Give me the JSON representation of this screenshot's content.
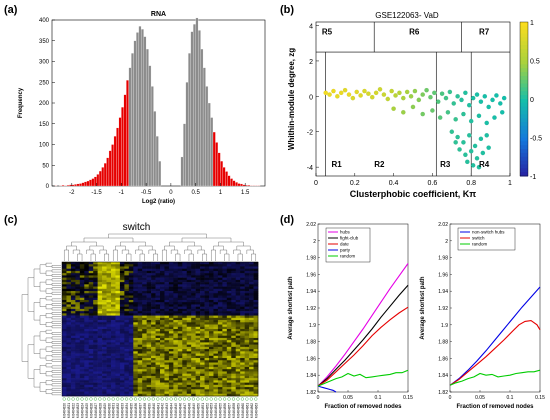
{
  "panels": {
    "a": {
      "label": "(a)"
    },
    "b": {
      "label": "(b)"
    },
    "c": {
      "label": "(c)"
    },
    "d": {
      "label": "(d)"
    }
  },
  "chart_data": [
    {
      "id": "a",
      "type": "bar",
      "title": "RNA",
      "xlabel": "Log2 (ratio)",
      "ylabel": "Frequency",
      "xlim": [
        -2.4,
        1.9
      ],
      "ylim": [
        0,
        400
      ],
      "xticks": [
        "-2",
        "-1.5",
        "-1",
        "-0.5",
        "0",
        "0.5",
        "1",
        "1.5"
      ],
      "xtick_values": [
        -2,
        -1.5,
        -1,
        -0.5,
        0,
        0.5,
        1,
        1.5
      ],
      "yticks": [
        "0",
        "50",
        "100",
        "150",
        "200",
        "250",
        "300",
        "350",
        "400"
      ],
      "ytick_values": [
        0,
        50,
        100,
        150,
        200,
        250,
        300,
        350,
        400
      ],
      "bin_width": 0.05,
      "bin_centers": [
        -2.325,
        -2.275,
        -2.225,
        -2.175,
        -2.125,
        -2.075,
        -2.025,
        -1.975,
        -1.925,
        -1.875,
        -1.825,
        -1.775,
        -1.725,
        -1.675,
        -1.625,
        -1.575,
        -1.525,
        -1.475,
        -1.425,
        -1.375,
        -1.325,
        -1.275,
        -1.225,
        -1.175,
        -1.125,
        -1.075,
        -1.025,
        -0.975,
        -0.925,
        -0.875,
        -0.825,
        -0.775,
        -0.725,
        -0.675,
        -0.625,
        -0.575,
        -0.525,
        -0.475,
        -0.425,
        -0.375,
        -0.325,
        -0.275,
        -0.225,
        0.225,
        0.275,
        0.325,
        0.375,
        0.425,
        0.475,
        0.525,
        0.575,
        0.625,
        0.675,
        0.725,
        0.775,
        0.825,
        0.875,
        0.925,
        0.975,
        1.025,
        1.075,
        1.125,
        1.175,
        1.225,
        1.275,
        1.325,
        1.375,
        1.425,
        1.475,
        1.525,
        1.575,
        1.625,
        1.675,
        1.725,
        1.775
      ],
      "values": [
        1,
        0,
        1,
        2,
        1,
        2,
        3,
        3,
        4,
        5,
        6,
        8,
        10,
        12,
        15,
        18,
        22,
        28,
        36,
        45,
        55,
        68,
        85,
        100,
        120,
        140,
        165,
        190,
        220,
        255,
        285,
        320,
        350,
        370,
        385,
        378,
        360,
        330,
        290,
        240,
        180,
        120,
        60,
        70,
        150,
        250,
        320,
        372,
        390,
        405,
        375,
        330,
        285,
        240,
        200,
        165,
        130,
        105,
        80,
        60,
        45,
        35,
        25,
        18,
        13,
        9,
        6,
        5,
        3,
        2,
        2,
        1,
        1,
        1,
        1
      ],
      "highlight_ranges": [
        [
          -2.4,
          -0.85
        ],
        [
          0.85,
          1.9
        ]
      ],
      "colors": {
        "bars": "#8c8c8c",
        "highlight": "#e60000"
      }
    },
    {
      "id": "b",
      "type": "scatter",
      "title": "GSE122063- VaD",
      "xlabel": "Clusterphobic coefficient, Kπ",
      "ylabel": "Whithin-module degree, zg",
      "xlim": [
        0,
        1
      ],
      "ylim": [
        -4.5,
        4.2
      ],
      "xticks": [
        "0",
        "0.2",
        "0.4",
        "0.6",
        "0.8",
        "1"
      ],
      "xtick_values": [
        0,
        0.2,
        0.4,
        0.6,
        0.8,
        1
      ],
      "yticks": [
        "4",
        "2",
        "0",
        "-2",
        "-4"
      ],
      "ytick_values": [
        4,
        2,
        0,
        -2,
        -4
      ],
      "region_lines": {
        "h": 2.5,
        "v_top": [
          0.3,
          0.75
        ],
        "v_bottom": [
          0.05,
          0.62,
          0.8
        ]
      },
      "regions": [
        "R1",
        "R2",
        "R3",
        "R4",
        "R5",
        "R6",
        "R7"
      ],
      "colorbar": {
        "ticks": [
          "1",
          "0.5",
          "0",
          "-0.5",
          "-1"
        ],
        "tick_values": [
          1,
          0.5,
          0,
          -0.5,
          -1
        ],
        "range": [
          -1,
          1
        ]
      },
      "points": [
        [
          0.05,
          0.2,
          0.95
        ],
        [
          0.07,
          0.1,
          0.9
        ],
        [
          0.09,
          0.3,
          0.92
        ],
        [
          0.11,
          0.0,
          0.88
        ],
        [
          0.13,
          0.2,
          0.9
        ],
        [
          0.15,
          0.35,
          0.85
        ],
        [
          0.17,
          0.1,
          0.9
        ],
        [
          0.19,
          -0.1,
          0.8
        ],
        [
          0.21,
          0.25,
          0.85
        ],
        [
          0.23,
          0.05,
          0.82
        ],
        [
          0.25,
          0.3,
          0.8
        ],
        [
          0.27,
          0.15,
          0.78
        ],
        [
          0.29,
          -0.05,
          0.75
        ],
        [
          0.31,
          0.2,
          0.76
        ],
        [
          0.33,
          0.4,
          0.72
        ],
        [
          0.35,
          0.1,
          0.7
        ],
        [
          0.37,
          -0.15,
          0.65
        ],
        [
          0.39,
          0.3,
          0.66
        ],
        [
          0.41,
          0.05,
          0.6
        ],
        [
          0.43,
          0.2,
          0.58
        ],
        [
          0.45,
          -0.1,
          0.52
        ],
        [
          0.47,
          0.25,
          0.5
        ],
        [
          0.49,
          0.0,
          0.45
        ],
        [
          0.51,
          0.3,
          0.42
        ],
        [
          0.53,
          -0.2,
          0.38
        ],
        [
          0.55,
          0.1,
          0.35
        ],
        [
          0.57,
          0.35,
          0.3
        ],
        [
          0.59,
          -0.05,
          0.28
        ],
        [
          0.61,
          0.2,
          0.25
        ],
        [
          0.63,
          -0.3,
          0.2
        ],
        [
          0.65,
          0.15,
          0.18
        ],
        [
          0.67,
          -0.1,
          0.15
        ],
        [
          0.69,
          0.25,
          0.12
        ],
        [
          0.71,
          -0.4,
          0.1
        ],
        [
          0.73,
          0.0,
          0.08
        ],
        [
          0.75,
          -0.2,
          0.06
        ],
        [
          0.77,
          0.2,
          0.05
        ],
        [
          0.79,
          -0.5,
          0.04
        ],
        [
          0.81,
          -0.1,
          0.03
        ],
        [
          0.83,
          0.1,
          0.02
        ],
        [
          0.85,
          -0.3,
          0.02
        ],
        [
          0.87,
          0.0,
          0.01
        ],
        [
          0.89,
          -0.6,
          0.01
        ],
        [
          0.91,
          -0.2,
          0.01
        ],
        [
          0.93,
          0.05,
          0.0
        ],
        [
          0.95,
          -0.4,
          0.0
        ],
        [
          0.97,
          -0.1,
          0.0
        ],
        [
          0.4,
          -0.7,
          0.5
        ],
        [
          0.45,
          -0.9,
          0.45
        ],
        [
          0.5,
          -0.6,
          0.4
        ],
        [
          0.55,
          -1.0,
          0.32
        ],
        [
          0.6,
          -0.8,
          0.28
        ],
        [
          0.64,
          -1.2,
          0.22
        ],
        [
          0.68,
          -0.9,
          0.16
        ],
        [
          0.72,
          -1.3,
          0.12
        ],
        [
          0.76,
          -1.0,
          0.08
        ],
        [
          0.8,
          -1.4,
          0.05
        ],
        [
          0.84,
          -1.1,
          0.03
        ],
        [
          0.88,
          -1.5,
          0.02
        ],
        [
          0.92,
          -1.2,
          0.01
        ],
        [
          0.96,
          -0.9,
          0.0
        ],
        [
          0.7,
          -2.0,
          0.1
        ],
        [
          0.73,
          -2.3,
          0.08
        ],
        [
          0.76,
          -2.6,
          0.07
        ],
        [
          0.79,
          -2.2,
          0.06
        ],
        [
          0.82,
          -2.8,
          0.05
        ],
        [
          0.85,
          -2.4,
          0.04
        ],
        [
          0.74,
          -3.0,
          0.08
        ],
        [
          0.77,
          -3.3,
          0.07
        ],
        [
          0.8,
          -3.1,
          0.06
        ],
        [
          0.83,
          -3.5,
          0.05
        ],
        [
          0.86,
          -3.2,
          0.04
        ],
        [
          0.89,
          -2.9,
          0.03
        ],
        [
          0.78,
          -3.7,
          0.06
        ],
        [
          0.81,
          -3.9,
          0.05
        ],
        [
          0.84,
          -4.0,
          0.04
        ],
        [
          0.72,
          -2.6,
          0.09
        ],
        [
          0.88,
          -2.2,
          0.03
        ]
      ]
    },
    {
      "id": "c",
      "type": "heatmap",
      "title": "switch",
      "rows": 60,
      "cols": 44,
      "col_groups": {
        "yellow_cols": [
          [
            8,
            12
          ]
        ],
        "blue_cols": [
          [
            16,
            43
          ]
        ],
        "split_row": 24
      },
      "col_labels": [
        "GSM3464820",
        "GSM3464821",
        "GSM3464822",
        "GSM3464823",
        "GSM3464824",
        "GSM3464825",
        "GSM3464826",
        "GSM3464827",
        "GSM3464828",
        "GSM3464829",
        "GSM3464830",
        "GSM3464831",
        "GSM3464832",
        "GSM3464833",
        "GSM3464834",
        "GSM3464835",
        "GSM3464836",
        "GSM3464837",
        "GSM3464838",
        "GSM3464839",
        "GSM3464840",
        "GSM3464841",
        "GSM3464842",
        "GSM3464843",
        "GSM3464844",
        "GSM3464845",
        "GSM3464846",
        "GSM3464847",
        "GSM3464848",
        "GSM3464849",
        "GSM3464850",
        "GSM3464851",
        "GSM3464852",
        "GSM3464853",
        "GSM3464854",
        "GSM3464855",
        "GSM3464856",
        "GSM3464857",
        "GSM3464858",
        "GSM3464859",
        "GSM3464860",
        "GSM3464861",
        "GSM3464862",
        "GSM3464863"
      ],
      "colors": {
        "low": "#1a1a8c",
        "mid": "#000000",
        "high": "#e6e600"
      }
    },
    {
      "id": "d1",
      "type": "line",
      "xlabel": "Fraction of removed nodes",
      "ylabel": "Average shortest path",
      "xlim": [
        0,
        0.15
      ],
      "ylim": [
        1.82,
        2.02
      ],
      "xticks": [
        "0",
        "0.05",
        "0.1",
        "0.15"
      ],
      "xtick_values": [
        0,
        0.05,
        0.1,
        0.15
      ],
      "yticks": [
        "1.82",
        "1.84",
        "1.86",
        "1.88",
        "1.9",
        "1.92",
        "1.94",
        "1.96",
        "1.98",
        "2",
        "2.02"
      ],
      "ytick_values": [
        1.82,
        1.84,
        1.86,
        1.88,
        1.9,
        1.92,
        1.94,
        1.96,
        1.98,
        2.0,
        2.02
      ],
      "series": [
        {
          "name": "hubs",
          "color": "#e600e6",
          "x": [
            0,
            0.015,
            0.03,
            0.045,
            0.06,
            0.075,
            0.09,
            0.105,
            0.12,
            0.135,
            0.15
          ],
          "y": [
            1.827,
            1.838,
            1.851,
            1.865,
            1.88,
            1.895,
            1.911,
            1.927,
            1.943,
            1.958,
            1.973
          ]
        },
        {
          "name": "fight-club",
          "color": "#000000",
          "x": [
            0,
            0.015,
            0.03,
            0.045,
            0.06,
            0.075,
            0.09,
            0.105,
            0.12,
            0.135,
            0.15
          ],
          "y": [
            1.827,
            1.836,
            1.847,
            1.858,
            1.87,
            1.882,
            1.895,
            1.909,
            1.922,
            1.935,
            1.947
          ]
        },
        {
          "name": "date",
          "color": "#e60000",
          "x": [
            0,
            0.015,
            0.03,
            0.045,
            0.06,
            0.075,
            0.09,
            0.105,
            0.12,
            0.135,
            0.15
          ],
          "y": [
            1.827,
            1.834,
            1.844,
            1.854,
            1.864,
            1.875,
            1.887,
            1.897,
            1.906,
            1.914,
            1.921
          ]
        },
        {
          "name": "party",
          "color": "#0000e6",
          "x": [
            0,
            0.005,
            0.01,
            0.015,
            0.02,
            0.025,
            0.03
          ],
          "y": [
            1.827,
            1.826,
            1.825,
            1.824,
            1.823,
            1.822,
            1.82
          ]
        },
        {
          "name": "random",
          "color": "#00cc00",
          "x": [
            0,
            0.01,
            0.02,
            0.03,
            0.04,
            0.05,
            0.06,
            0.07,
            0.08,
            0.09,
            0.1,
            0.11,
            0.12,
            0.13,
            0.14,
            0.15
          ],
          "y": [
            1.827,
            1.83,
            1.833,
            1.836,
            1.838,
            1.842,
            1.839,
            1.841,
            1.837,
            1.838,
            1.839,
            1.84,
            1.841,
            1.843,
            1.843,
            1.846
          ]
        }
      ]
    },
    {
      "id": "d2",
      "type": "line",
      "xlabel": "Fraction of removed nodes",
      "ylabel": "Average shortest path",
      "xlim": [
        0,
        0.15
      ],
      "ylim": [
        1.82,
        2.02
      ],
      "xticks": [
        "0",
        "0.05",
        "0.1",
        "0.15"
      ],
      "xtick_values": [
        0,
        0.05,
        0.1,
        0.15
      ],
      "yticks": [
        "1.82",
        "1.84",
        "1.86",
        "1.88",
        "1.9",
        "1.92",
        "1.94",
        "1.96",
        "1.98",
        "2",
        "2.02"
      ],
      "ytick_values": [
        1.82,
        1.84,
        1.86,
        1.88,
        1.9,
        1.92,
        1.94,
        1.96,
        1.98,
        2.0,
        2.02
      ],
      "series": [
        {
          "name": "non-switch hubs",
          "color": "#0000e6",
          "x": [
            0,
            0.015,
            0.03,
            0.045,
            0.06,
            0.075,
            0.09,
            0.105,
            0.12,
            0.135,
            0.15
          ],
          "y": [
            1.828,
            1.836,
            1.846,
            1.857,
            1.869,
            1.882,
            1.895,
            1.908,
            1.921,
            1.933,
            1.945
          ]
        },
        {
          "name": "switch",
          "color": "#e60000",
          "x": [
            0,
            0.015,
            0.03,
            0.045,
            0.06,
            0.075,
            0.09,
            0.105,
            0.115,
            0.125,
            0.135,
            0.145,
            0.15
          ],
          "y": [
            1.828,
            1.835,
            1.844,
            1.853,
            1.862,
            1.872,
            1.882,
            1.893,
            1.9,
            1.904,
            1.905,
            1.9,
            1.894
          ]
        },
        {
          "name": "random",
          "color": "#00cc00",
          "x": [
            0,
            0.01,
            0.02,
            0.03,
            0.04,
            0.05,
            0.06,
            0.07,
            0.08,
            0.09,
            0.1,
            0.11,
            0.12,
            0.13,
            0.14,
            0.15
          ],
          "y": [
            1.828,
            1.831,
            1.833,
            1.836,
            1.838,
            1.842,
            1.84,
            1.841,
            1.838,
            1.839,
            1.84,
            1.842,
            1.843,
            1.844,
            1.844,
            1.846
          ]
        }
      ]
    }
  ]
}
